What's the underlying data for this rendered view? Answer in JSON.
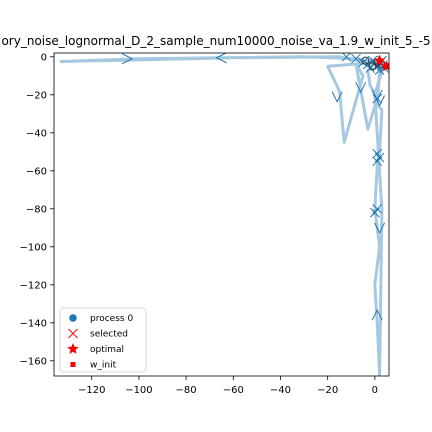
{
  "chart_data": {
    "type": "line",
    "title": "ory_noise_lognormal_D_2_sample_num10000_noise_va_1.9_w_init_5_-5",
    "xlabel": "",
    "ylabel": "",
    "xlim": [
      -136,
      6
    ],
    "ylim": [
      -168,
      2
    ],
    "x_ticks": [
      -120,
      -100,
      -80,
      -60,
      -40,
      -20,
      0
    ],
    "y_ticks": [
      0,
      -20,
      -40,
      -60,
      -80,
      -100,
      -120,
      -140,
      -160
    ],
    "x_tick_labels": [
      "−120",
      "−100",
      "−80",
      "−60",
      "−40",
      "−20",
      "0"
    ],
    "y_tick_labels": [
      "0",
      "−20",
      "−40",
      "−60",
      "−80",
      "−100",
      "−120",
      "−140",
      "−160"
    ],
    "grid": false,
    "legend_position": "bottom-left",
    "colors": {
      "trajectory": "#a6c8e0",
      "arrow": "#1f77b4",
      "process": "#1f77b4",
      "optimal": "#ff0000",
      "w_init": "#ff0000",
      "selected": "#ff0000"
    },
    "series": [
      {
        "name": "process 0",
        "points": [
          [
            5,
            -5
          ],
          [
            -15,
            0
          ],
          [
            -60,
            -0.5
          ],
          [
            -133,
            -2.5
          ],
          [
            -100,
            -1
          ],
          [
            -30,
            0
          ],
          [
            -8,
            -1
          ],
          [
            1,
            -3
          ],
          [
            3,
            -5
          ],
          [
            -3,
            -7
          ],
          [
            -2,
            -15
          ],
          [
            1,
            -22
          ],
          [
            -3,
            -38
          ],
          [
            -8,
            -4
          ],
          [
            -5,
            -10
          ],
          [
            -13,
            -45
          ],
          [
            -15,
            -18
          ],
          [
            -20,
            -5
          ],
          [
            0,
            -3
          ],
          [
            2,
            -8
          ],
          [
            1,
            -25
          ],
          [
            3,
            -28
          ],
          [
            2,
            -50
          ],
          [
            1,
            -58
          ],
          [
            0,
            -80
          ],
          [
            1,
            -90
          ],
          [
            2,
            -100
          ],
          [
            0,
            -120
          ],
          [
            1,
            -140
          ],
          [
            2,
            -168
          ],
          [
            3,
            -80
          ],
          [
            0,
            -20
          ],
          [
            4,
            -3
          ],
          [
            2,
            -2
          ]
        ]
      }
    ],
    "arrows": [
      {
        "x": -105,
        "y": -1,
        "dir": "right"
      },
      {
        "x": -65,
        "y": -0.5,
        "dir": "left"
      },
      {
        "x": -16,
        "y": -21,
        "dir": "down"
      },
      {
        "x": -6,
        "y": -16,
        "dir": "down"
      },
      {
        "x": 1,
        "y": -20,
        "dir": "down"
      },
      {
        "x": 2,
        "y": -23,
        "dir": "down"
      },
      {
        "x": 2,
        "y": -90,
        "dir": "down"
      },
      {
        "x": 1,
        "y": -136,
        "dir": "up"
      }
    ],
    "selected_markers": [
      [
        -12,
        0
      ],
      [
        -8,
        -1
      ],
      [
        -5,
        -3
      ],
      [
        -3,
        -4
      ],
      [
        0,
        -3
      ],
      [
        3,
        -2
      ],
      [
        1,
        -5
      ],
      [
        -2,
        -6
      ],
      [
        2,
        -7
      ],
      [
        4,
        -6
      ],
      [
        -1,
        -2
      ],
      [
        1,
        -22
      ],
      [
        1,
        -51
      ],
      [
        2,
        -53
      ],
      [
        1,
        -55
      ],
      [
        1,
        -80
      ],
      [
        0,
        -82
      ]
    ],
    "optimal": [
      [
        2,
        -2
      ],
      [
        5,
        -5
      ]
    ],
    "w_init": [
      [
        5,
        -5
      ]
    ],
    "legend": [
      {
        "label": "process 0",
        "marker": "circle"
      },
      {
        "label": "selected",
        "marker": "x"
      },
      {
        "label": "optimal",
        "marker": "star"
      },
      {
        "label": "w_init",
        "marker": "square"
      }
    ]
  }
}
